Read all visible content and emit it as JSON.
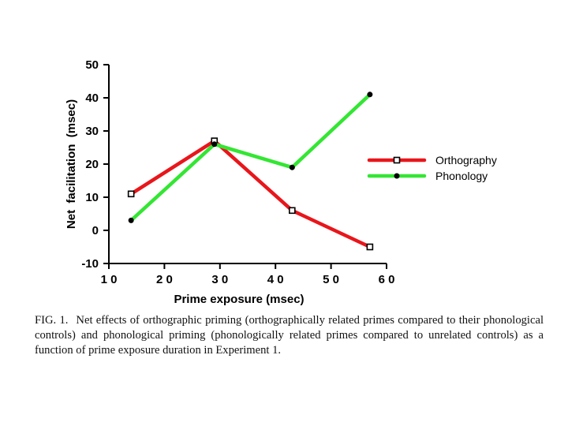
{
  "chart_data": {
    "type": "line",
    "title": "",
    "xlabel": "Prime exposure (msec)",
    "ylabel": "Net  facilitation  (msec)",
    "x": [
      14,
      29,
      43,
      57
    ],
    "xlim": [
      10,
      60
    ],
    "ylim": [
      -10,
      50
    ],
    "xticks": [
      10,
      20,
      30,
      40,
      50,
      60
    ],
    "yticks": [
      -10,
      0,
      10,
      20,
      30,
      40,
      50
    ],
    "xtick_labels": [
      "1 0",
      "2 0",
      "3 0",
      "4 0",
      "5 0",
      "6 0"
    ],
    "ytick_labels": [
      "-10",
      "0",
      "10",
      "20",
      "30",
      "40",
      "50"
    ],
    "legend_position": "right",
    "series": [
      {
        "name": "Orthography",
        "values": [
          11,
          27,
          6,
          -5
        ],
        "color": "#e8161b",
        "marker": "square"
      },
      {
        "name": "Phonology",
        "values": [
          3,
          26,
          19,
          41
        ],
        "color": "#33e633",
        "marker": "circle"
      }
    ]
  },
  "caption": {
    "label": "FIG. 1.",
    "text": "Net effects of orthographic priming (orthographically related primes compared to their phonological controls) and phonological priming (phonologically related primes compared to unrelated controls) as a function of prime exposure duration in Experiment 1."
  }
}
